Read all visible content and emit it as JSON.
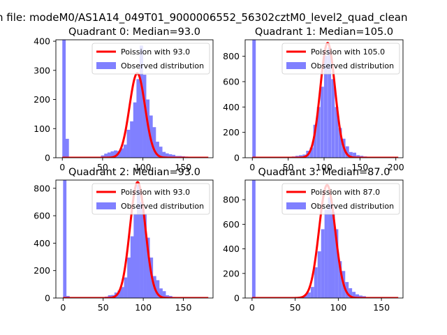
{
  "figure": {
    "suptitle": "n file: modeM0/AS1A14_049T01_9000006552_56302cztM0_level2_quad_clean"
  },
  "colors": {
    "fit_line": "#ff0000",
    "histogram": "#8080ff",
    "legend_border": "#cccccc"
  },
  "chart_data": [
    {
      "type": "bar",
      "title": "Quadrant 0: Median=93.0",
      "xlim": [
        -8,
        187
      ],
      "ylim": [
        0,
        405
      ],
      "xticks": [
        0,
        50,
        100,
        150
      ],
      "yticks": [
        0,
        100,
        200,
        300,
        400
      ],
      "legend": [
        "Poission with 93.0",
        "Observed distribution"
      ],
      "legend_position": "upper right",
      "fit": {
        "name": "Poission with 93.0",
        "mean": 93.0,
        "peak": 290
      },
      "bin_width": 4.2,
      "bins": [
        [
          0,
          405
        ],
        [
          4,
          65
        ],
        [
          8,
          2
        ],
        [
          12,
          2
        ],
        [
          16,
          2
        ],
        [
          20,
          2
        ],
        [
          24,
          2
        ],
        [
          28,
          2
        ],
        [
          32,
          2
        ],
        [
          36,
          2
        ],
        [
          40,
          3
        ],
        [
          44,
          3
        ],
        [
          48,
          8
        ],
        [
          52,
          14
        ],
        [
          56,
          18
        ],
        [
          60,
          22
        ],
        [
          64,
          25
        ],
        [
          68,
          23
        ],
        [
          72,
          32
        ],
        [
          76,
          45
        ],
        [
          80,
          96
        ],
        [
          84,
          125
        ],
        [
          88,
          190
        ],
        [
          92,
          270
        ],
        [
          96,
          385
        ],
        [
          100,
          285
        ],
        [
          104,
          200
        ],
        [
          108,
          145
        ],
        [
          112,
          105
        ],
        [
          116,
          55
        ],
        [
          120,
          38
        ],
        [
          124,
          20
        ],
        [
          128,
          15
        ],
        [
          132,
          12
        ],
        [
          136,
          10
        ],
        [
          140,
          6
        ],
        [
          144,
          6
        ],
        [
          148,
          5
        ],
        [
          152,
          4
        ],
        [
          156,
          3
        ],
        [
          160,
          2
        ],
        [
          164,
          2
        ],
        [
          168,
          2
        ],
        [
          172,
          1
        ],
        [
          176,
          1
        ]
      ]
    },
    {
      "type": "bar",
      "title": "Quadrant 1: Median=105.0",
      "xlim": [
        -10,
        210
      ],
      "ylim": [
        0,
        930
      ],
      "xticks": [
        0,
        50,
        100,
        150,
        200
      ],
      "yticks": [
        0,
        200,
        400,
        600,
        800
      ],
      "legend": [
        "Poission with 105.0",
        "Observed distribution"
      ],
      "legend_position": "upper right",
      "fit": {
        "name": "Poission with 105.0",
        "mean": 105.0,
        "peak": 905
      },
      "bin_width": 4.8,
      "bins": [
        [
          0,
          930
        ],
        [
          5,
          6
        ],
        [
          10,
          3
        ],
        [
          15,
          2
        ],
        [
          20,
          2
        ],
        [
          25,
          2
        ],
        [
          30,
          2
        ],
        [
          35,
          2
        ],
        [
          40,
          2
        ],
        [
          45,
          3
        ],
        [
          50,
          4
        ],
        [
          55,
          10
        ],
        [
          60,
          15
        ],
        [
          65,
          20
        ],
        [
          70,
          25
        ],
        [
          75,
          55
        ],
        [
          80,
          80
        ],
        [
          85,
          260
        ],
        [
          90,
          400
        ],
        [
          95,
          560
        ],
        [
          100,
          805
        ],
        [
          105,
          870
        ],
        [
          110,
          620
        ],
        [
          115,
          400
        ],
        [
          120,
          235
        ],
        [
          125,
          150
        ],
        [
          130,
          90
        ],
        [
          135,
          45
        ],
        [
          140,
          40
        ],
        [
          145,
          20
        ],
        [
          150,
          15
        ],
        [
          155,
          10
        ],
        [
          160,
          8
        ],
        [
          165,
          6
        ],
        [
          170,
          5
        ],
        [
          175,
          3
        ],
        [
          180,
          2
        ],
        [
          185,
          2
        ],
        [
          190,
          1
        ],
        [
          195,
          1
        ],
        [
          200,
          1
        ],
        [
          205,
          1
        ]
      ]
    },
    {
      "type": "bar",
      "title": "Quadrant 2: Median=93.0",
      "xlim": [
        -9,
        187
      ],
      "ylim": [
        0,
        860
      ],
      "xticks": [
        0,
        50,
        100,
        150
      ],
      "yticks": [
        0,
        200,
        400,
        600,
        800
      ],
      "legend": [
        "Poission with 93.0",
        "Observed distribution"
      ],
      "legend_position": "upper right",
      "fit": {
        "name": "Poission with 93.0",
        "mean": 93.0,
        "peak": 845
      },
      "bin_width": 4.2,
      "bins": [
        [
          0,
          860
        ],
        [
          4,
          15
        ],
        [
          8,
          3
        ],
        [
          12,
          2
        ],
        [
          16,
          2
        ],
        [
          20,
          2
        ],
        [
          24,
          2
        ],
        [
          28,
          2
        ],
        [
          32,
          2
        ],
        [
          36,
          2
        ],
        [
          40,
          2
        ],
        [
          44,
          3
        ],
        [
          48,
          5
        ],
        [
          52,
          10
        ],
        [
          56,
          20
        ],
        [
          60,
          22
        ],
        [
          64,
          40
        ],
        [
          68,
          55
        ],
        [
          72,
          80
        ],
        [
          76,
          150
        ],
        [
          80,
          295
        ],
        [
          84,
          450
        ],
        [
          88,
          610
        ],
        [
          92,
          825
        ],
        [
          96,
          700
        ],
        [
          100,
          615
        ],
        [
          104,
          440
        ],
        [
          108,
          295
        ],
        [
          112,
          160
        ],
        [
          116,
          130
        ],
        [
          120,
          70
        ],
        [
          124,
          50
        ],
        [
          128,
          20
        ],
        [
          132,
          15
        ],
        [
          136,
          8
        ],
        [
          140,
          5
        ],
        [
          144,
          4
        ],
        [
          148,
          3
        ],
        [
          152,
          2
        ],
        [
          156,
          2
        ],
        [
          160,
          1
        ],
        [
          164,
          1
        ],
        [
          168,
          1
        ],
        [
          172,
          1
        ],
        [
          176,
          1
        ]
      ]
    },
    {
      "type": "bar",
      "title": "Quadrant 3: Median=87.0",
      "xlim": [
        -8,
        175
      ],
      "ylim": [
        0,
        960
      ],
      "xticks": [
        0,
        50,
        100,
        150
      ],
      "yticks": [
        0,
        200,
        400,
        600,
        800
      ],
      "legend": [
        "Poission with 87.0",
        "Observed distribution"
      ],
      "legend_position": "upper right",
      "fit": {
        "name": "Poission with 87.0",
        "mean": 87.0,
        "peak": 920
      },
      "bin_width": 4.0,
      "bins": [
        [
          0,
          960
        ],
        [
          4,
          8
        ],
        [
          8,
          3
        ],
        [
          12,
          2
        ],
        [
          16,
          2
        ],
        [
          20,
          2
        ],
        [
          24,
          2
        ],
        [
          28,
          2
        ],
        [
          32,
          2
        ],
        [
          36,
          2
        ],
        [
          40,
          2
        ],
        [
          44,
          3
        ],
        [
          48,
          4
        ],
        [
          52,
          6
        ],
        [
          56,
          10
        ],
        [
          60,
          25
        ],
        [
          64,
          45
        ],
        [
          68,
          90
        ],
        [
          72,
          250
        ],
        [
          76,
          380
        ],
        [
          80,
          560
        ],
        [
          84,
          720
        ],
        [
          88,
          820
        ],
        [
          92,
          700
        ],
        [
          96,
          560
        ],
        [
          100,
          300
        ],
        [
          104,
          220
        ],
        [
          108,
          130
        ],
        [
          112,
          80
        ],
        [
          116,
          50
        ],
        [
          120,
          30
        ],
        [
          124,
          20
        ],
        [
          128,
          15
        ],
        [
          132,
          8
        ],
        [
          136,
          5
        ],
        [
          140,
          3
        ],
        [
          144,
          3
        ],
        [
          148,
          2
        ],
        [
          152,
          2
        ],
        [
          156,
          1
        ],
        [
          160,
          1
        ],
        [
          164,
          1
        ]
      ]
    }
  ]
}
